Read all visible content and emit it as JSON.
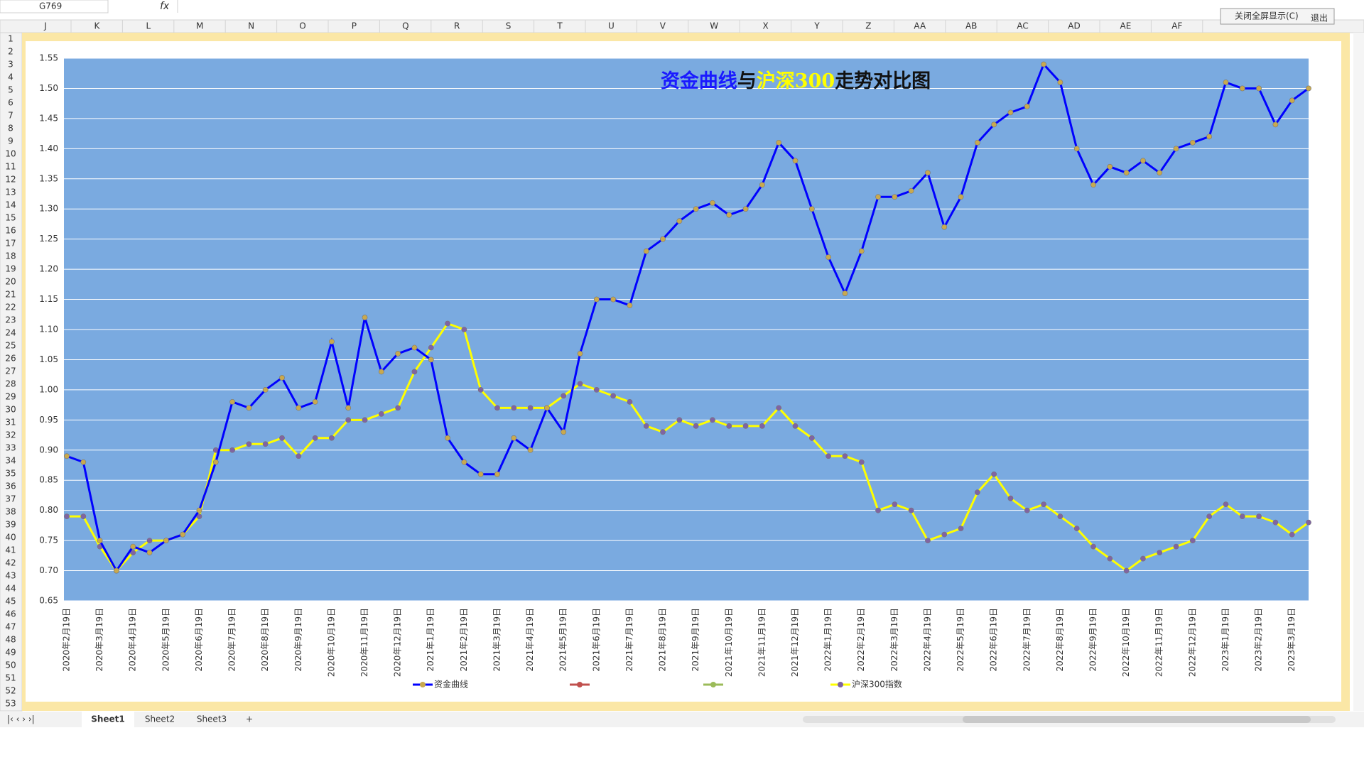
{
  "ui": {
    "name_box": "G769",
    "fx": "fx",
    "columns": [
      "J",
      "K",
      "L",
      "M",
      "N",
      "O",
      "P",
      "Q",
      "R",
      "S",
      "T",
      "U",
      "V",
      "W",
      "X",
      "Y",
      "Z",
      "AA",
      "AB",
      "AC",
      "AD",
      "AE",
      "AF"
    ],
    "rows": [
      1,
      2,
      3,
      4,
      5,
      6,
      7,
      8,
      9,
      10,
      11,
      12,
      13,
      14,
      15,
      16,
      17,
      18,
      19,
      20,
      21,
      22,
      23,
      24,
      25,
      26,
      27,
      28,
      29,
      30,
      31,
      32,
      33,
      34,
      35,
      36,
      37,
      38,
      39,
      40,
      41,
      42,
      43,
      44,
      45,
      46,
      47,
      48,
      49,
      50,
      51,
      52,
      53
    ],
    "sheets": [
      "Sheet1",
      "Sheet2",
      "Sheet3"
    ],
    "buttons": [
      "关闭全屏显示(C)",
      "退出"
    ]
  },
  "chart_data": {
    "type": "line",
    "title": [
      {
        "text": "资金曲线",
        "color": "#1a1aff"
      },
      {
        "text": "与",
        "color": "#111111"
      },
      {
        "text": "沪深300",
        "color": "#ffff00"
      },
      {
        "text": "走势对比图",
        "color": "#111111"
      }
    ],
    "categories": [
      "2020年2月19日",
      null,
      "2020年3月19日",
      null,
      "2020年4月19日",
      null,
      "2020年5月19日",
      null,
      "2020年6月19日",
      null,
      "2020年7月19日",
      null,
      "2020年8月19日",
      null,
      "2020年9月19日",
      null,
      "2020年10月19日",
      null,
      "2020年11月19日",
      null,
      "2020年12月19日",
      null,
      "2021年1月19日",
      null,
      "2021年2月19日",
      null,
      "2021年3月19日",
      null,
      "2021年4月19日",
      null,
      "2021年5月19日",
      null,
      "2021年6月19日",
      null,
      "2021年7月19日",
      null,
      "2021年8月19日",
      null,
      "2021年9月19日",
      null,
      "2021年10月19日",
      null,
      "2021年11月19日",
      null,
      "2021年12月19日",
      null,
      "2022年1月19日",
      null,
      "2022年2月19日",
      null,
      "2022年3月19日",
      null,
      "2022年4月19日",
      null,
      "2022年5月19日",
      null,
      "2022年6月19日",
      null,
      "2022年7月19日",
      null,
      "2022年8月19日",
      null,
      "2022年9月19日",
      null,
      "2022年10月19日",
      null,
      "2022年11月19日",
      null,
      "2022年12月19日",
      null,
      "2023年1月19日",
      null,
      "2023年2月19日",
      null,
      "2023年3月19日",
      null
    ],
    "series": [
      {
        "name": "资金曲线",
        "color": "#0000ff",
        "marker_color": "#c9a94e",
        "values": [
          0.89,
          0.88,
          0.75,
          0.7,
          0.74,
          0.73,
          0.75,
          0.76,
          0.8,
          0.88,
          0.98,
          0.97,
          1.0,
          1.02,
          0.97,
          0.98,
          1.08,
          0.97,
          1.12,
          1.03,
          1.06,
          1.07,
          1.05,
          0.92,
          0.88,
          0.86,
          0.86,
          0.92,
          0.9,
          0.97,
          0.93,
          1.06,
          1.15,
          1.15,
          1.14,
          1.23,
          1.25,
          1.28,
          1.3,
          1.31,
          1.29,
          1.3,
          1.34,
          1.41,
          1.38,
          1.3,
          1.22,
          1.16,
          1.23,
          1.32,
          1.32,
          1.33,
          1.36,
          1.27,
          1.32,
          1.41,
          1.44,
          1.46,
          1.47,
          1.54,
          1.51,
          1.4,
          1.34,
          1.37,
          1.36,
          1.38,
          1.36,
          1.4,
          1.41,
          1.42,
          1.51,
          1.5,
          1.5,
          1.44,
          1.48,
          1.5
        ]
      },
      {
        "name": "沪深300指数",
        "color": "#ffff00",
        "marker_color": "#8064a2",
        "values": [
          0.79,
          0.79,
          0.74,
          0.7,
          0.73,
          0.75,
          0.75,
          0.76,
          0.79,
          0.9,
          0.9,
          0.91,
          0.91,
          0.92,
          0.89,
          0.92,
          0.92,
          0.95,
          0.95,
          0.96,
          0.97,
          1.03,
          1.07,
          1.11,
          1.1,
          1.0,
          0.97,
          0.97,
          0.97,
          0.97,
          0.99,
          1.01,
          1.0,
          0.99,
          0.98,
          0.94,
          0.93,
          0.95,
          0.94,
          0.95,
          0.94,
          0.94,
          0.94,
          0.97,
          0.94,
          0.92,
          0.89,
          0.89,
          0.88,
          0.8,
          0.81,
          0.8,
          0.75,
          0.76,
          0.77,
          0.83,
          0.86,
          0.82,
          0.8,
          0.81,
          0.79,
          0.77,
          0.74,
          0.72,
          0.7,
          0.72,
          0.73,
          0.74,
          0.75,
          0.79,
          0.81,
          0.79,
          0.79,
          0.78,
          0.76,
          0.78
        ]
      }
    ],
    "ylim": [
      0.65,
      1.55
    ],
    "yticks": [
      0.65,
      {
        "value": 0.7,
        "label": "0.70"
      },
      0.75,
      {
        "value": 0.8,
        "label": "0.80"
      },
      0.85,
      {
        "value": 0.9,
        "label": "0.90"
      },
      0.95,
      {
        "value": 1,
        "label": "1.00"
      },
      1.05,
      {
        "value": 1.1,
        "label": "1.10"
      },
      1.15,
      {
        "value": 1.2,
        "label": "1.20"
      },
      1.25,
      {
        "value": 1.3,
        "label": "1.30"
      },
      1.35,
      {
        "value": 1.4,
        "label": "1.40"
      },
      1.45,
      {
        "value": 1.5,
        "label": "1.50"
      },
      1.55
    ],
    "grid": true,
    "plot_color": "#7aaae0",
    "legend": "bottom"
  }
}
